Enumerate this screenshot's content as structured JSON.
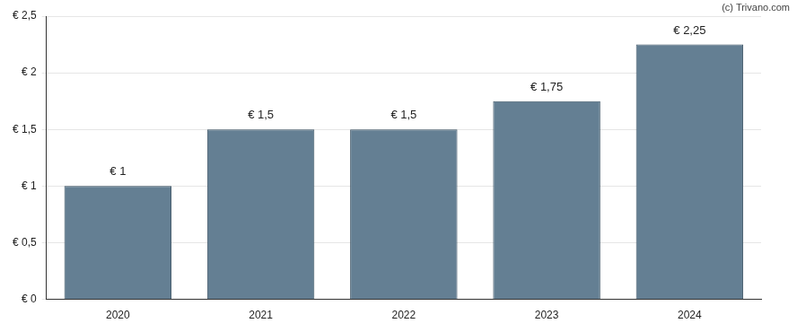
{
  "chart_data": {
    "type": "bar",
    "annotations": [
      "(c) Trivano.com"
    ],
    "categories": [
      "2020",
      "2021",
      "2022",
      "2023",
      "2024"
    ],
    "values": [
      1,
      1.5,
      1.5,
      1.75,
      2.25
    ],
    "value_labels": [
      "€ 1",
      "€ 1,5",
      "€ 1,5",
      "€ 1,75",
      "€ 2,25"
    ],
    "data_labels": true,
    "color": "#647f93",
    "ylim": [
      0,
      2.5
    ],
    "yticks": [
      {
        "value": 0,
        "label": "€ 0"
      },
      {
        "value": 0.5,
        "label": "€ 0,5"
      },
      {
        "value": 1,
        "label": "€ 1"
      },
      {
        "value": 1.5,
        "label": "€ 1,5"
      },
      {
        "value": 2,
        "label": "€ 2"
      },
      {
        "value": 2.5,
        "label": "€ 2,5"
      }
    ],
    "grid": true
  }
}
